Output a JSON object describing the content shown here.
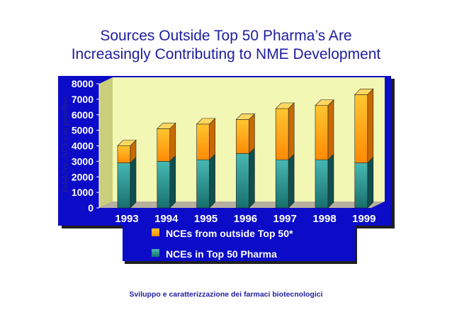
{
  "title_lines": [
    "Sources Outside Top 50 Pharma’s Are",
    "Increasingly Contributing to NME Development"
  ],
  "footer": "Sviluppo e caratterizzazione dei farmaci biotecnologici",
  "colors": {
    "panel": "#0b0bc8",
    "plot_back": "#f2f7b4",
    "series_outside_top": "#ffc630",
    "series_outside_bottom": "#ff8a05",
    "series_top50_top": "#47b8b2",
    "series_top50_bottom": "#17706e",
    "text": "#1d1da0",
    "tick": "#ffffff"
  },
  "chart_data": {
    "type": "bar",
    "stacked": true,
    "three_d": true,
    "categories": [
      "1993",
      "1994",
      "1995",
      "1996",
      "1997",
      "1998",
      "1999"
    ],
    "series": [
      {
        "name": "NCEs in Top 50 Pharma",
        "values": [
          2900,
          3000,
          3100,
          3500,
          3100,
          3100,
          2900
        ]
      },
      {
        "name": "NCEs from outside Top 50*",
        "values": [
          1100,
          2100,
          2300,
          2200,
          3300,
          3500,
          4400
        ]
      }
    ],
    "ylabel": "Total No. NCEs in pipeline",
    "xlabel": "",
    "ylim": [
      0,
      8000
    ],
    "yticks": [
      0,
      1000,
      2000,
      3000,
      4000,
      5000,
      6000,
      7000,
      8000
    ],
    "legend": {
      "placement": "bottom",
      "entries": [
        "NCEs from outside Top 50*",
        "NCEs in Top 50 Pharma"
      ]
    },
    "grid": false
  }
}
